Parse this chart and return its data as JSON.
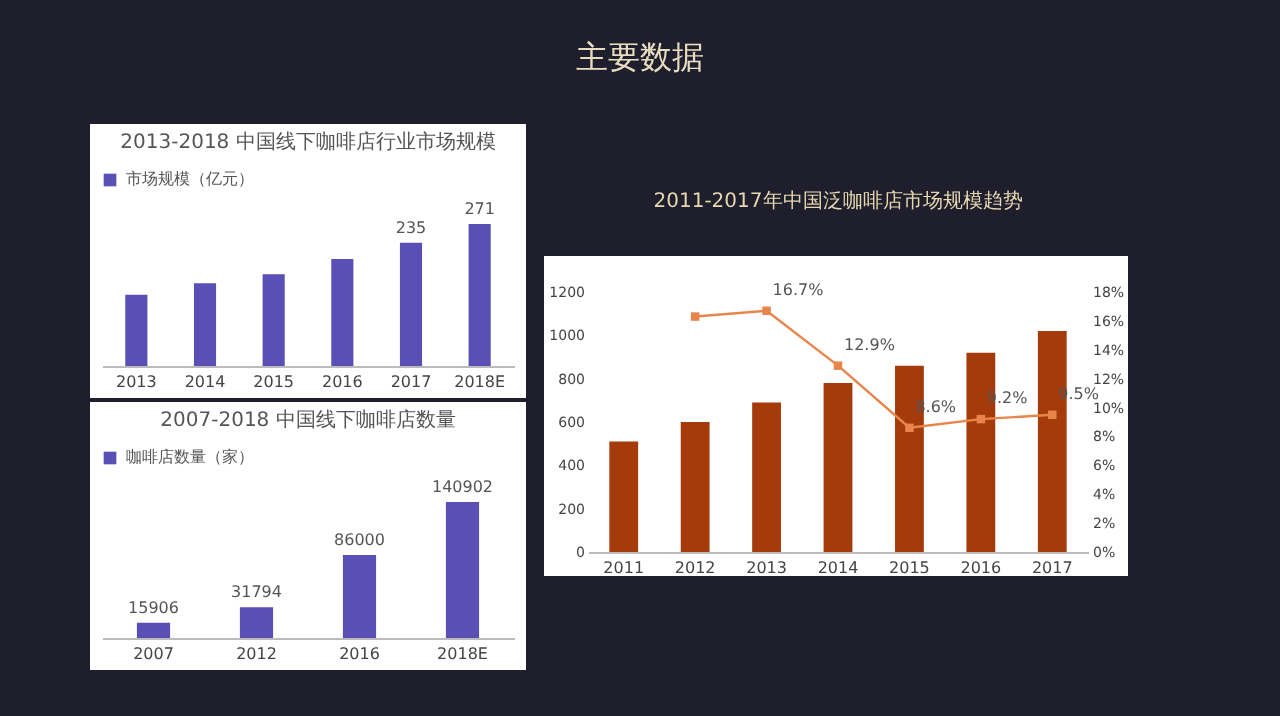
{
  "chart_data": [
    {
      "type": "other",
      "title": "主要数据"
    },
    {
      "type": "bar",
      "title": "2013-2018 中国线下咖啡店行业市场规模",
      "categories": [
        "2013",
        "2014",
        "2015",
        "2016",
        "2017",
        "2018E"
      ],
      "legend": "top",
      "series": [
        {
          "name": "市场规模（亿元）",
          "color": "#5a4fb5",
          "values": [
            136,
            158,
            175,
            204,
            235,
            271
          ],
          "value_labels": [
            null,
            null,
            null,
            null,
            "235",
            "271"
          ]
        }
      ]
    },
    {
      "type": "bar",
      "title": "2007-2018 中国线下咖啡店数量",
      "categories": [
        "2007",
        "2012",
        "2016",
        "2018E"
      ],
      "legend": "top",
      "data_labels": true,
      "series": [
        {
          "name": "咖啡店数量（家）",
          "color": "#5a4fb5",
          "values": [
            15906,
            31794,
            86000,
            140902
          ]
        }
      ]
    },
    {
      "type": "bar",
      "title": "2011-2017年中国泛咖啡店市场规模趋势",
      "categories": [
        "2011",
        "2012",
        "2013",
        "2014",
        "2015",
        "2016",
        "2017"
      ],
      "ylim": [
        0,
        1200
      ],
      "yticks": [
        0,
        200,
        400,
        600,
        800,
        1000,
        1200
      ],
      "y2lim": [
        0,
        18
      ],
      "y2ticks": [
        {
          "value": 0,
          "label": "0%"
        },
        {
          "value": 2,
          "label": "2%"
        },
        {
          "value": 4,
          "label": "4%"
        },
        {
          "value": 6,
          "label": "6%"
        },
        {
          "value": 8,
          "label": "8%"
        },
        {
          "value": 10,
          "label": "10%"
        },
        {
          "value": 12,
          "label": "12%"
        },
        {
          "value": 14,
          "label": "14%"
        },
        {
          "value": 16,
          "label": "16%"
        },
        {
          "value": 18,
          "label": "18%"
        }
      ],
      "marker": "square",
      "series": [
        {
          "type": "bar",
          "color": "#a53a0a",
          "values": [
            510,
            600,
            690,
            780,
            860,
            920,
            1020
          ]
        },
        {
          "type": "line",
          "axis": "y2",
          "color": "#e8854a",
          "values": [
            null,
            16.3,
            16.7,
            12.9,
            8.6,
            9.2,
            9.5
          ],
          "value_labels": [
            null,
            null,
            "16.7%",
            "12.9%",
            "8.6%",
            "9.2%",
            "9.5%"
          ]
        }
      ]
    }
  ]
}
